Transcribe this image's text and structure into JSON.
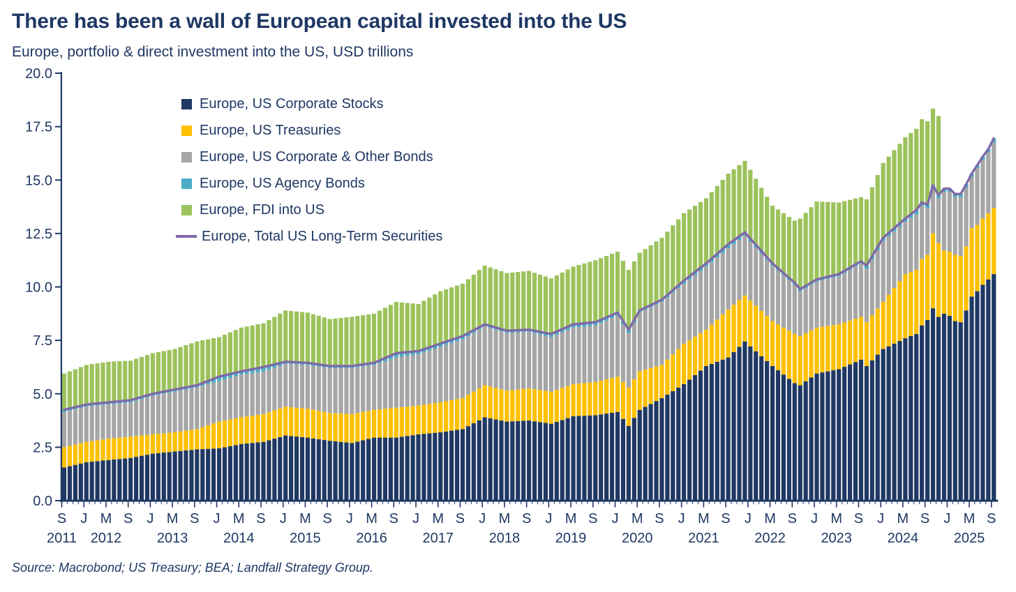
{
  "page": {
    "title": "There has been a wall of European capital invested into the US",
    "subtitle": "Europe, portfolio & direct investment into the US, USD trillions",
    "source": "Source: Macrobond; US Treasury; BEA; Landfall Strategy Group."
  },
  "chart_data": {
    "type": "bar",
    "subtype": "stacked-monthly-bars-with-line-overlay",
    "unit": "USD trillions",
    "y_axis": {
      "min": 0,
      "max": 20,
      "tick_step": 2.5,
      "tick_labels": [
        "0.0",
        "2.5",
        "5.0",
        "7.5",
        "10.0",
        "12.5",
        "15.0",
        "17.5",
        "20.0"
      ]
    },
    "x_axis": {
      "start": "2011-09",
      "end": "2025-09",
      "tick_every_months": 4,
      "month_letter_cycle": [
        "S",
        "J",
        "M"
      ],
      "years": [
        "2011",
        "2012",
        "2013",
        "2014",
        "2015",
        "2016",
        "2017",
        "2018",
        "2019",
        "2020",
        "2021",
        "2022",
        "2023",
        "2024",
        "2025"
      ]
    },
    "series": [
      {
        "name": "Europe, US Corporate Stocks",
        "key": "stocks",
        "kind": "bar",
        "color": "#1F3864"
      },
      {
        "name": "Europe, US Treasuries",
        "key": "treasuries",
        "kind": "bar",
        "color": "#FFC000"
      },
      {
        "name": "Europe, US Corporate & Other Bonds",
        "key": "corp_other_bonds",
        "kind": "bar",
        "color": "#A6A6A6"
      },
      {
        "name": "Europe, US Agency Bonds",
        "key": "agency_bonds",
        "kind": "bar",
        "color": "#4BACC6"
      },
      {
        "name": "Europe, FDI into US",
        "key": "fdi",
        "kind": "bar",
        "color": "#9CC25B"
      },
      {
        "name": "Europe, Total US Long-Term Securities",
        "key": "total_long_term",
        "kind": "line",
        "color": "#7E69A8",
        "derived_from": "stocks + treasuries + corp_other_bonds + agency_bonds"
      }
    ],
    "sampling_note": "values in USD trillions read off the chart at the labeled 4-month ticks plus extra turning points; monthly bars are linearly interpolated between these anchors; FDI data ends Nov 2024",
    "anchors": {
      "dates": [
        "2011-09",
        "2012-01",
        "2012-05",
        "2012-09",
        "2013-01",
        "2013-05",
        "2013-09",
        "2014-01",
        "2014-05",
        "2014-09",
        "2015-01",
        "2015-05",
        "2015-09",
        "2016-01",
        "2016-05",
        "2016-09",
        "2017-01",
        "2017-05",
        "2017-09",
        "2018-01",
        "2018-05",
        "2018-09",
        "2019-01",
        "2019-05",
        "2019-09",
        "2020-01",
        "2020-03",
        "2020-05",
        "2020-09",
        "2021-01",
        "2021-05",
        "2021-09",
        "2021-12",
        "2022-05",
        "2022-09",
        "2022-10",
        "2023-01",
        "2023-05",
        "2023-09",
        "2023-10",
        "2024-01",
        "2024-05",
        "2024-07",
        "2024-08",
        "2024-09",
        "2024-10",
        "2024-11",
        "2024-12",
        "2025-01",
        "2025-02",
        "2025-03",
        "2025-04",
        "2025-05",
        "2025-06",
        "2025-07",
        "2025-08",
        "2025-09"
      ],
      "stocks": [
        1.55,
        1.8,
        1.9,
        2.0,
        2.2,
        2.3,
        2.4,
        2.45,
        2.65,
        2.75,
        3.05,
        2.95,
        2.8,
        2.7,
        2.95,
        2.95,
        3.1,
        3.2,
        3.35,
        3.9,
        3.7,
        3.75,
        3.6,
        3.95,
        4.0,
        4.15,
        3.5,
        4.25,
        4.8,
        5.45,
        6.3,
        6.7,
        7.45,
        6.3,
        5.5,
        5.4,
        5.95,
        6.15,
        6.6,
        6.3,
        7.1,
        7.6,
        7.8,
        8.2,
        8.45,
        9.0,
        8.6,
        8.75,
        8.65,
        8.4,
        8.35,
        8.9,
        9.55,
        9.8,
        10.1,
        10.35,
        10.6
      ],
      "treasuries": [
        0.95,
        0.95,
        1.0,
        1.0,
        0.9,
        0.9,
        0.95,
        1.25,
        1.25,
        1.3,
        1.35,
        1.35,
        1.3,
        1.35,
        1.3,
        1.4,
        1.35,
        1.4,
        1.45,
        1.5,
        1.45,
        1.5,
        1.5,
        1.5,
        1.55,
        1.65,
        1.8,
        1.8,
        1.55,
        1.9,
        1.7,
        2.25,
        2.15,
        2.1,
        2.3,
        2.3,
        2.15,
        2.1,
        2.0,
        2.05,
        2.2,
        3.0,
        3.0,
        3.1,
        3.05,
        3.5,
        3.45,
        2.95,
        3.0,
        3.1,
        3.1,
        3.0,
        3.2,
        3.1,
        3.1,
        3.1,
        3.1
      ],
      "corp_other_bonds": [
        1.65,
        1.65,
        1.6,
        1.6,
        1.8,
        1.9,
        1.95,
        1.9,
        2.0,
        2.0,
        2.0,
        2.05,
        2.1,
        2.15,
        2.1,
        2.35,
        2.4,
        2.6,
        2.75,
        2.75,
        2.7,
        2.65,
        2.55,
        2.65,
        2.65,
        2.85,
        2.55,
        2.75,
        2.95,
        2.8,
        2.95,
        2.85,
        2.8,
        2.6,
        2.3,
        2.1,
        2.15,
        2.25,
        2.5,
        2.5,
        2.85,
        2.45,
        2.6,
        2.5,
        2.2,
        2.1,
        2.1,
        2.75,
        2.8,
        2.7,
        2.75,
        2.75,
        2.4,
        2.65,
        2.75,
        2.85,
        3.05
      ],
      "agency_bonds": [
        0.1,
        0.1,
        0.1,
        0.1,
        0.1,
        0.1,
        0.1,
        0.2,
        0.15,
        0.2,
        0.1,
        0.1,
        0.1,
        0.1,
        0.1,
        0.2,
        0.15,
        0.15,
        0.15,
        0.1,
        0.1,
        0.1,
        0.15,
        0.15,
        0.15,
        0.15,
        0.15,
        0.1,
        0.1,
        0.15,
        0.15,
        0.2,
        0.15,
        0.1,
        0.1,
        0.1,
        0.1,
        0.1,
        0.1,
        0.15,
        0.15,
        0.15,
        0.2,
        0.15,
        0.15,
        0.15,
        0.15,
        0.15,
        0.15,
        0.15,
        0.15,
        0.15,
        0.15,
        0.15,
        0.15,
        0.15,
        0.2
      ],
      "fdi": [
        1.7,
        1.85,
        1.9,
        1.85,
        1.9,
        1.9,
        2.05,
        1.85,
        2.05,
        2.05,
        2.4,
        2.35,
        2.2,
        2.3,
        2.3,
        2.4,
        2.2,
        2.45,
        2.45,
        2.75,
        2.7,
        2.75,
        2.6,
        2.7,
        2.9,
        2.85,
        2.8,
        2.7,
        2.9,
        3.15,
        3.05,
        3.3,
        3.35,
        2.7,
        2.9,
        3.3,
        3.65,
        3.35,
        3.0,
        3.1,
        3.5,
        3.8,
        3.8,
        3.9,
        3.9,
        3.6,
        3.7,
        null,
        null,
        null,
        null,
        null,
        null,
        null,
        null,
        null,
        null
      ]
    }
  }
}
